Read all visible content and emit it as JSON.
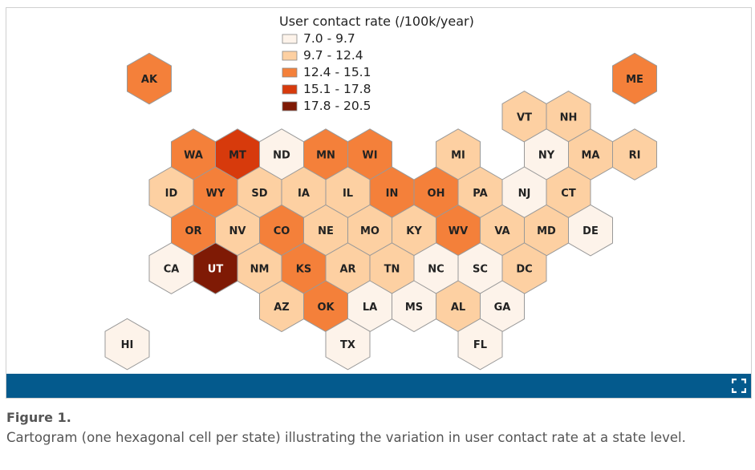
{
  "figure": {
    "label": "Figure 1.",
    "caption": "Cartogram (one hexagonal cell per state) illustrating the variation in user contact rate at a state level."
  },
  "legend": {
    "title": "User contact rate (/100k/year)",
    "bins": [
      {
        "label": "7.0 - 9.7",
        "color": "#fdf3ea"
      },
      {
        "label": "9.7 - 12.4",
        "color": "#fdd0a2"
      },
      {
        "label": "12.4 - 15.1",
        "color": "#f4803a"
      },
      {
        "label": "15.1 - 17.8",
        "color": "#d73a0c"
      },
      {
        "label": "17.8 - 20.5",
        "color": "#7f1a05"
      }
    ]
  },
  "colors": {
    "bar": "#045a8d",
    "hex_stroke": "#999999",
    "dark_label": "#222222",
    "light_label": "#ffffff"
  },
  "icons": {
    "expand": "expand-icon"
  },
  "chart_data": {
    "type": "hex-cartogram",
    "note": "bin = legend bin index (0..4); grid col/row give tile layout",
    "states": [
      {
        "abbr": "AK",
        "bin": 2,
        "col": 0,
        "row": 0
      },
      {
        "abbr": "ME",
        "bin": 2,
        "col": 11,
        "row": 0
      },
      {
        "abbr": "VT",
        "bin": 1,
        "col": 9,
        "row": 1
      },
      {
        "abbr": "NH",
        "bin": 1,
        "col": 10,
        "row": 1
      },
      {
        "abbr": "WA",
        "bin": 2,
        "col": 1,
        "row": 2
      },
      {
        "abbr": "MT",
        "bin": 3,
        "col": 2,
        "row": 2
      },
      {
        "abbr": "ND",
        "bin": 0,
        "col": 3,
        "row": 2
      },
      {
        "abbr": "MN",
        "bin": 2,
        "col": 4,
        "row": 2
      },
      {
        "abbr": "WI",
        "bin": 2,
        "col": 5,
        "row": 2
      },
      {
        "abbr": "MI",
        "bin": 1,
        "col": 7,
        "row": 2
      },
      {
        "abbr": "NY",
        "bin": 0,
        "col": 9,
        "row": 2
      },
      {
        "abbr": "MA",
        "bin": 1,
        "col": 10,
        "row": 2
      },
      {
        "abbr": "RI",
        "bin": 1,
        "col": 11,
        "row": 2
      },
      {
        "abbr": "ID",
        "bin": 1,
        "col": 1,
        "row": 3
      },
      {
        "abbr": "WY",
        "bin": 2,
        "col": 2,
        "row": 3
      },
      {
        "abbr": "SD",
        "bin": 1,
        "col": 3,
        "row": 3
      },
      {
        "abbr": "IA",
        "bin": 1,
        "col": 4,
        "row": 3
      },
      {
        "abbr": "IL",
        "bin": 1,
        "col": 5,
        "row": 3
      },
      {
        "abbr": "IN",
        "bin": 2,
        "col": 6,
        "row": 3
      },
      {
        "abbr": "OH",
        "bin": 2,
        "col": 7,
        "row": 3
      },
      {
        "abbr": "PA",
        "bin": 1,
        "col": 8,
        "row": 3
      },
      {
        "abbr": "NJ",
        "bin": 0,
        "col": 9,
        "row": 3
      },
      {
        "abbr": "CT",
        "bin": 1,
        "col": 10,
        "row": 3
      },
      {
        "abbr": "OR",
        "bin": 2,
        "col": 1,
        "row": 4
      },
      {
        "abbr": "NV",
        "bin": 1,
        "col": 2,
        "row": 4
      },
      {
        "abbr": "CO",
        "bin": 2,
        "col": 3,
        "row": 4
      },
      {
        "abbr": "NE",
        "bin": 1,
        "col": 4,
        "row": 4
      },
      {
        "abbr": "MO",
        "bin": 1,
        "col": 5,
        "row": 4
      },
      {
        "abbr": "KY",
        "bin": 1,
        "col": 6,
        "row": 4
      },
      {
        "abbr": "WV",
        "bin": 2,
        "col": 7,
        "row": 4
      },
      {
        "abbr": "VA",
        "bin": 1,
        "col": 8,
        "row": 4
      },
      {
        "abbr": "MD",
        "bin": 1,
        "col": 9,
        "row": 4
      },
      {
        "abbr": "DE",
        "bin": 0,
        "col": 10,
        "row": 4
      },
      {
        "abbr": "CA",
        "bin": 0,
        "col": 1,
        "row": 5
      },
      {
        "abbr": "UT",
        "bin": 4,
        "col": 2,
        "row": 5
      },
      {
        "abbr": "NM",
        "bin": 1,
        "col": 3,
        "row": 5
      },
      {
        "abbr": "KS",
        "bin": 2,
        "col": 4,
        "row": 5
      },
      {
        "abbr": "AR",
        "bin": 1,
        "col": 5,
        "row": 5
      },
      {
        "abbr": "TN",
        "bin": 1,
        "col": 6,
        "row": 5
      },
      {
        "abbr": "NC",
        "bin": 0,
        "col": 7,
        "row": 5
      },
      {
        "abbr": "SC",
        "bin": 0,
        "col": 8,
        "row": 5
      },
      {
        "abbr": "DC",
        "bin": 1,
        "col": 9,
        "row": 5
      },
      {
        "abbr": "AZ",
        "bin": 1,
        "col": 3,
        "row": 6
      },
      {
        "abbr": "OK",
        "bin": 2,
        "col": 4,
        "row": 6
      },
      {
        "abbr": "LA",
        "bin": 0,
        "col": 5,
        "row": 6
      },
      {
        "abbr": "MS",
        "bin": 0,
        "col": 6,
        "row": 6
      },
      {
        "abbr": "AL",
        "bin": 1,
        "col": 7,
        "row": 6
      },
      {
        "abbr": "GA",
        "bin": 0,
        "col": 8,
        "row": 6
      },
      {
        "abbr": "HI",
        "bin": 0,
        "col": 0,
        "row": 7
      },
      {
        "abbr": "TX",
        "bin": 0,
        "col": 5,
        "row": 7
      },
      {
        "abbr": "FL",
        "bin": 0,
        "col": 8,
        "row": 7
      }
    ]
  }
}
